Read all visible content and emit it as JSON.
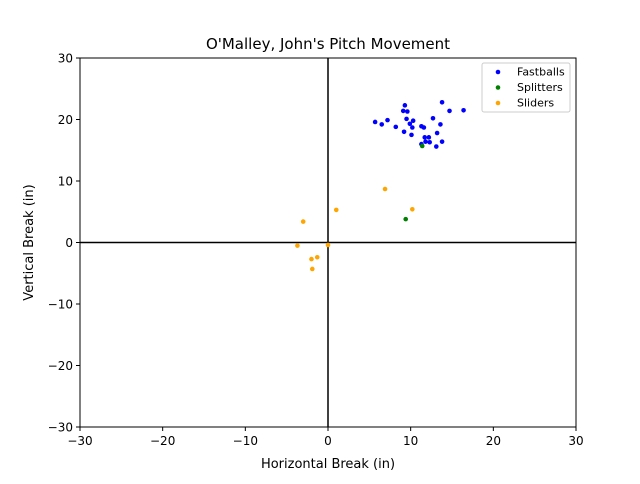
{
  "chart_data": {
    "type": "scatter",
    "title": "O'Malley, John's Pitch Movement",
    "xlabel": "Horizontal Break (in)",
    "ylabel": "Vertical Break (in)",
    "xlim": [
      -30,
      30
    ],
    "ylim": [
      -30,
      30
    ],
    "xticks": [
      -30,
      -20,
      -10,
      0,
      10,
      20,
      30
    ],
    "yticks": [
      -30,
      -20,
      -10,
      0,
      10,
      20,
      30
    ],
    "xtick_labels": [
      "−30",
      "−20",
      "−10",
      "0",
      "10",
      "20",
      "30"
    ],
    "ytick_labels": [
      "−30",
      "−20",
      "−10",
      "0",
      "10",
      "20",
      "30"
    ],
    "grid": false,
    "legend_position": "upper right",
    "zero_lines": true,
    "series": [
      {
        "name": "Fastballs",
        "color": "#0000ff",
        "points": [
          [
            13.8,
            22.8
          ],
          [
            9.3,
            22.3
          ],
          [
            9.1,
            21.4
          ],
          [
            9.6,
            21.3
          ],
          [
            14.7,
            21.4
          ],
          [
            16.4,
            21.5
          ],
          [
            12.7,
            20.2
          ],
          [
            7.2,
            19.9
          ],
          [
            5.7,
            19.6
          ],
          [
            9.5,
            20.1
          ],
          [
            10.3,
            19.8
          ],
          [
            6.5,
            19.2
          ],
          [
            9.9,
            19.3
          ],
          [
            13.6,
            19.2
          ],
          [
            8.2,
            18.8
          ],
          [
            10.2,
            18.7
          ],
          [
            11.3,
            18.9
          ],
          [
            11.6,
            18.7
          ],
          [
            9.2,
            18.0
          ],
          [
            10.1,
            17.5
          ],
          [
            13.2,
            17.8
          ],
          [
            11.7,
            17.1
          ],
          [
            12.2,
            17.1
          ],
          [
            11.8,
            16.4
          ],
          [
            12.3,
            16.3
          ],
          [
            13.8,
            16.4
          ],
          [
            11.3,
            16.0
          ],
          [
            13.1,
            15.6
          ]
        ]
      },
      {
        "name": "Splitters",
        "color": "#008000",
        "points": [
          [
            11.4,
            15.7
          ],
          [
            9.4,
            3.8
          ]
        ]
      },
      {
        "name": "Sliders",
        "color": "#ffa500",
        "points": [
          [
            6.9,
            8.7
          ],
          [
            1.0,
            5.3
          ],
          [
            10.2,
            5.4
          ],
          [
            -3.0,
            3.4
          ],
          [
            -3.7,
            -0.5
          ],
          [
            0.0,
            -0.4
          ],
          [
            -1.3,
            -2.4
          ],
          [
            -2.0,
            -2.7
          ],
          [
            -1.9,
            -4.3
          ]
        ]
      }
    ]
  }
}
